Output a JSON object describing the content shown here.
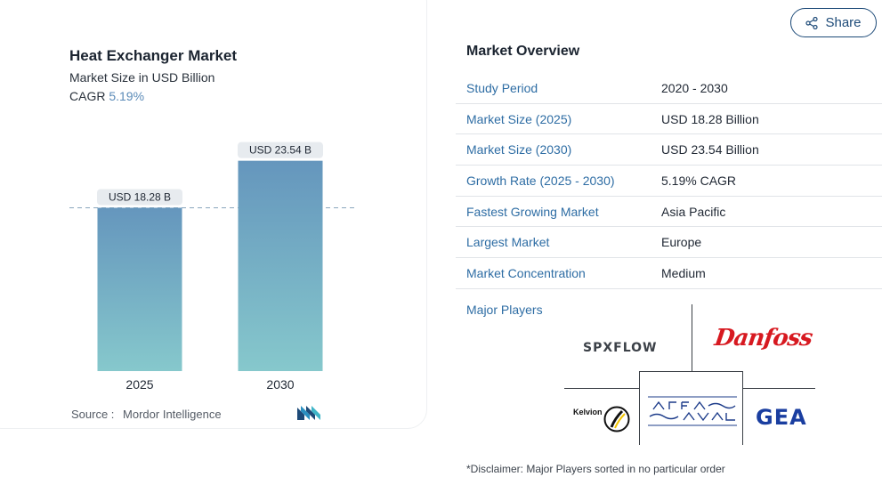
{
  "chart": {
    "title": "Heat Exchanger Market",
    "subtitle": "Market Size in USD Billion",
    "cagr_label": "CAGR",
    "cagr_value": "5.19%",
    "source_label": "Source :",
    "source_value": "Mordor Intelligence"
  },
  "chart_data": {
    "type": "bar",
    "categories": [
      "2025",
      "2030"
    ],
    "values": [
      18.28,
      23.54
    ],
    "data_labels": [
      "USD 18.28 B",
      "USD 23.54 B"
    ],
    "title": "Heat Exchanger Market",
    "subtitle": "Market Size in USD Billion",
    "ylim": [
      0,
      25
    ],
    "grid": false,
    "reference_line": 18.28,
    "colors": {
      "bar_top": "#6596bd",
      "bar_bottom": "#86c8cc",
      "label_bg": "#e7ebef",
      "ref_line": "#8aa6bd"
    }
  },
  "share": {
    "label": "Share",
    "icon": "share-icon"
  },
  "overview": {
    "title": "Market Overview",
    "rows": [
      {
        "label": "Study Period",
        "value": "2020 - 2030"
      },
      {
        "label": "Market Size (2025)",
        "value": "USD 18.28 Billion"
      },
      {
        "label": "Market Size (2030)",
        "value": "USD 23.54 Billion"
      },
      {
        "label": "Growth Rate (2025 - 2030)",
        "value": "5.19% CAGR"
      },
      {
        "label": "Fastest Growing Market",
        "value": "Asia Pacific"
      },
      {
        "label": "Largest Market",
        "value": "Europe"
      },
      {
        "label": "Market Concentration",
        "value": "Medium"
      }
    ],
    "major_players_label": "Major Players",
    "players": {
      "spx": "SPXFLOW",
      "danfoss": "Danfoss",
      "kelvion": "Kelvion",
      "alfa_laval": "ALFA LAVAL",
      "gea": "GEA"
    }
  },
  "disclaimer": "*Disclaimer: Major Players sorted in no particular order",
  "colors": {
    "accent_blue": "#2e6da4",
    "share_border": "#1d4a78",
    "danfoss_red": "#d71920",
    "gea_blue": "#1a3ea0"
  }
}
